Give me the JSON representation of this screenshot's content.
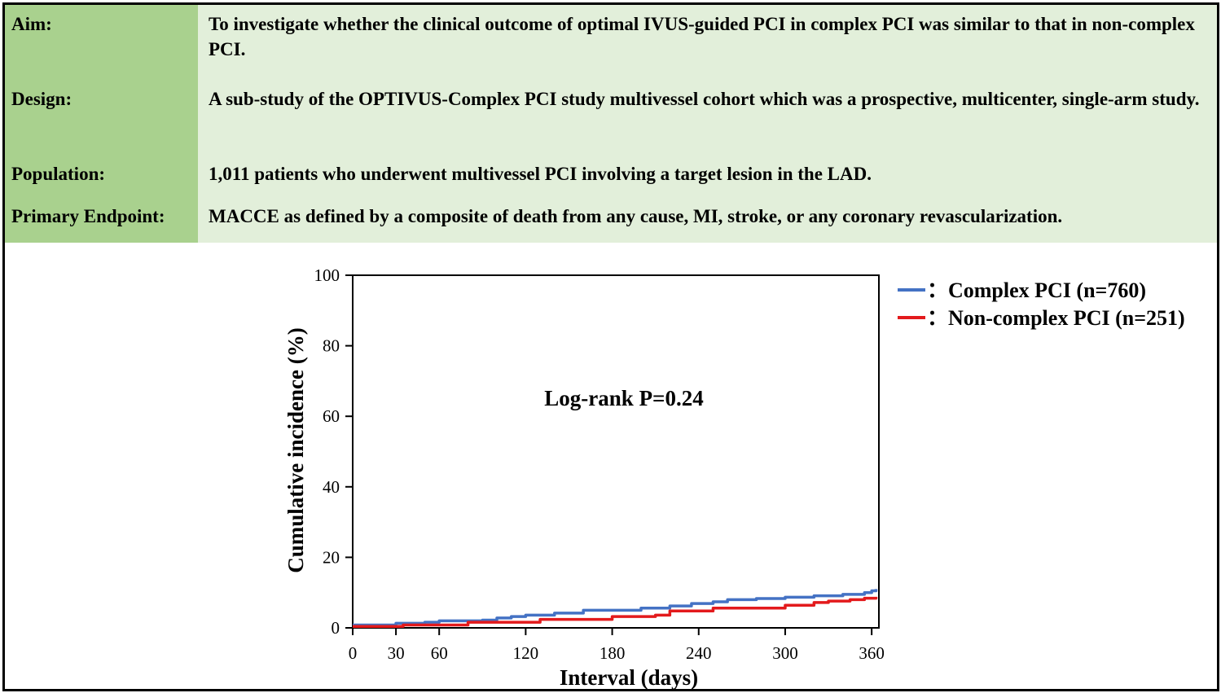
{
  "summary": {
    "rows": [
      {
        "label": "Aim:",
        "value": "To investigate whether the clinical outcome of optimal IVUS-guided PCI in complex PCI was similar to that in non-complex PCI."
      },
      {
        "label": "Design:",
        "value": "A sub-study of the OPTIVUS-Complex PCI study multivessel cohort which was a prospective, multicenter, single-arm study."
      },
      {
        "label": "Population:",
        "value": "1,011 patients who underwent multivessel PCI involving a target lesion in the LAD."
      },
      {
        "label": "Primary Endpoint:",
        "value": "MACCE as defined by a composite of death from any cause, MI, stroke, or any coronary revascularization."
      }
    ]
  },
  "colors": {
    "label_bg": "#a9d18e",
    "value_bg": "#e2efda",
    "complex": "#4472c4",
    "noncomplex": "#e31a1c"
  },
  "chart_data": {
    "type": "line",
    "title": "",
    "xlabel": "Interval (days)",
    "ylabel": "Cumulative incidence (%)",
    "xlim": [
      0,
      365
    ],
    "ylim": [
      0,
      100
    ],
    "xticks": [
      0,
      30,
      60,
      120,
      180,
      240,
      300,
      360
    ],
    "yticks": [
      0,
      20,
      40,
      60,
      80,
      100
    ],
    "grid": false,
    "legend_position": "top-right",
    "annotation": "Log-rank P=0.24",
    "series": [
      {
        "name": "Complex PCI (n=760)",
        "legend_text": "：Complex PCI (n=760)",
        "color": "#4472c4",
        "x": [
          0,
          10,
          30,
          50,
          60,
          90,
          100,
          110,
          120,
          140,
          160,
          180,
          200,
          220,
          235,
          250,
          260,
          280,
          300,
          320,
          340,
          355,
          360,
          363
        ],
        "y": [
          0.8,
          0.8,
          1.3,
          1.6,
          2.0,
          2.2,
          2.8,
          3.2,
          3.6,
          4.2,
          5.0,
          5.0,
          5.6,
          6.2,
          6.9,
          7.4,
          8.0,
          8.3,
          8.7,
          9.1,
          9.5,
          10.0,
          10.5,
          11.0
        ]
      },
      {
        "name": "Non-complex PCI (n=251)",
        "legend_text": "：Non-complex PCI (n=251)",
        "color": "#e31a1c",
        "x": [
          0,
          30,
          35,
          75,
          80,
          100,
          130,
          140,
          180,
          210,
          220,
          250,
          260,
          300,
          320,
          330,
          345,
          355,
          363
        ],
        "y": [
          0.4,
          0.4,
          0.8,
          0.8,
          1.6,
          1.6,
          2.4,
          2.4,
          3.2,
          3.6,
          4.8,
          5.6,
          5.6,
          6.4,
          7.2,
          7.6,
          8.0,
          8.4,
          8.8
        ]
      }
    ]
  }
}
